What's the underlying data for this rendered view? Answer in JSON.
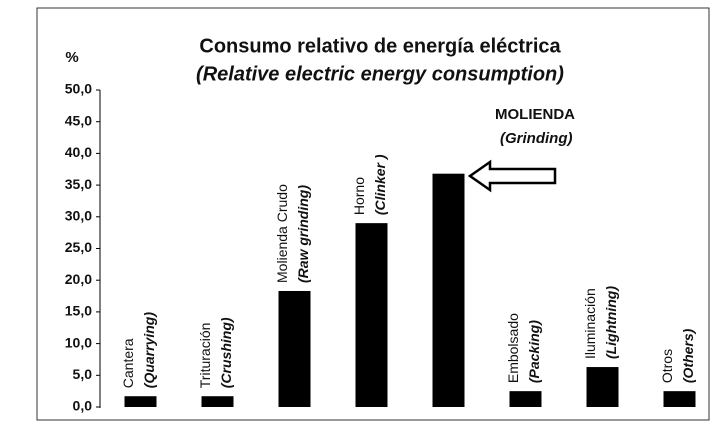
{
  "chart_data": {
    "type": "bar",
    "title": "Consumo relativo de energía eléctrica",
    "subtitle": "(Relative electric energy consumption)",
    "y_label": "%",
    "categories": [
      "Cantera",
      "Trituración",
      "Molienda Crudo",
      "Horno",
      "Molienda",
      "Embolsado",
      "Iluminación",
      "Otros"
    ],
    "category_translations": [
      "(Quarrying)",
      "(Crushing)",
      "(Raw grinding)",
      "(Clinker )",
      null,
      "(Packing)",
      "(Lightning)",
      "(Others)"
    ],
    "values": [
      1.7,
      1.7,
      18.3,
      29.0,
      36.8,
      2.5,
      6.3,
      2.5
    ],
    "color": "#000000",
    "ylim": [
      0,
      50
    ],
    "yticks": [
      {
        "value": 0,
        "label": "0,0"
      },
      {
        "value": 5,
        "label": "5,0"
      },
      {
        "value": 10,
        "label": "10,0"
      },
      {
        "value": 15,
        "label": "15,0"
      },
      {
        "value": 20,
        "label": "20,0"
      },
      {
        "value": 25,
        "label": "25,0"
      },
      {
        "value": 30,
        "label": "30,0"
      },
      {
        "value": 35,
        "label": "35,0"
      },
      {
        "value": 40,
        "label": "40,0"
      },
      {
        "value": 45,
        "label": "45,0"
      },
      {
        "value": 50,
        "label": "50,0"
      }
    ],
    "annotation": {
      "text": "MOLIENDA",
      "translation": "(Grinding)"
    },
    "grid": false
  }
}
